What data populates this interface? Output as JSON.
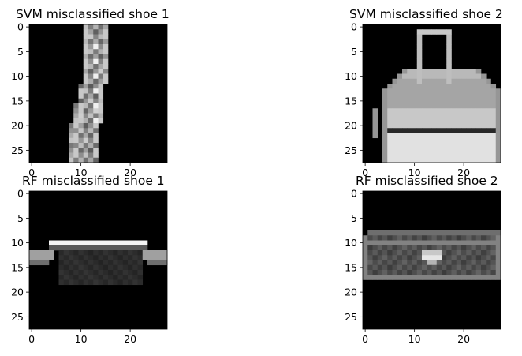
{
  "figure": {
    "background": "#ffffff",
    "axis_color": "#000000"
  },
  "chart_data": [
    {
      "type": "heatmap",
      "title": "SVM misclassified shoe 1",
      "colormap": "gray",
      "xlim": [
        -0.5,
        27.5
      ],
      "ylim": [
        27.5,
        -0.5
      ],
      "xticks": [
        0,
        10,
        20
      ],
      "yticks": [
        0,
        5,
        10,
        15,
        20,
        25
      ],
      "image": "tall narrow grayscale item (sock/boot outline) centered around column 12, spanning nearly full height",
      "grid": false
    },
    {
      "type": "heatmap",
      "title": "SVM misclassified shoe 2",
      "colormap": "gray",
      "xlim": [
        -0.5,
        27.5
      ],
      "ylim": [
        27.5,
        -0.5
      ],
      "xticks": [
        0,
        10,
        20
      ],
      "yticks": [
        0,
        5,
        10,
        15,
        20,
        25
      ],
      "image": "grayscale handbag with top handle, body rows 10-27",
      "grid": false
    },
    {
      "type": "heatmap",
      "title": "RF misclassified shoe 1",
      "colormap": "gray",
      "xlim": [
        -0.5,
        27.5
      ],
      "ylim": [
        27.5,
        -0.5
      ],
      "xticks": [
        0,
        10,
        20
      ],
      "yticks": [
        0,
        5,
        10,
        15,
        20,
        25
      ],
      "image": "dark flat item (bag/shoe) with bright top edge at row 10, spanning rows 10-18",
      "grid": false
    },
    {
      "type": "heatmap",
      "title": "RF misclassified shoe 2",
      "colormap": "gray",
      "xlim": [
        -0.5,
        27.5
      ],
      "ylim": [
        27.5,
        -0.5
      ],
      "xticks": [
        0,
        10,
        20
      ],
      "yticks": [
        0,
        5,
        10,
        15,
        20,
        25
      ],
      "image": "dark gray rectangular wallet/clutch spanning rows 9-18 with bright clasp near column 14",
      "grid": false
    }
  ]
}
